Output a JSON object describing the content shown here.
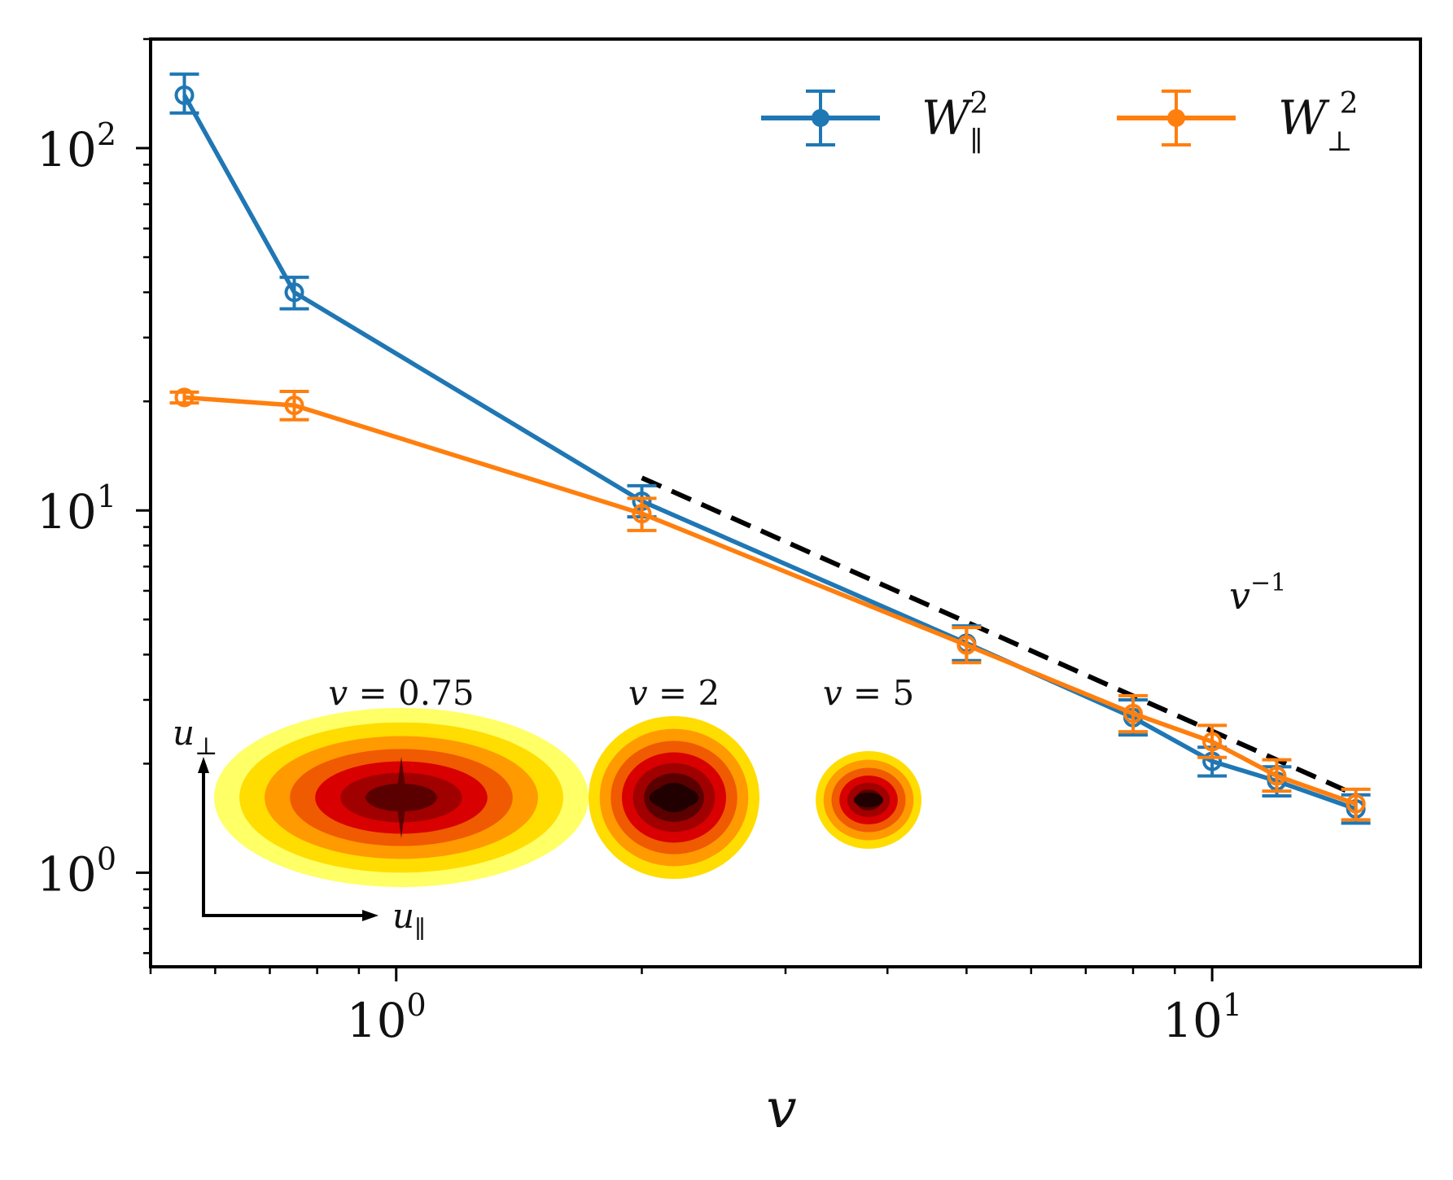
{
  "chart_data": {
    "type": "line",
    "xscale": "log",
    "yscale": "log",
    "xlim": [
      0.5,
      18
    ],
    "ylim": [
      0.55,
      200
    ],
    "xlabel": "v",
    "ylabel": "",
    "title": "",
    "x_ticks": [
      {
        "value": 1,
        "base": "10",
        "exp": "0"
      },
      {
        "value": 10,
        "base": "10",
        "exp": "1"
      }
    ],
    "y_ticks": [
      {
        "value": 1,
        "base": "10",
        "exp": "0"
      },
      {
        "value": 10,
        "base": "10",
        "exp": "1"
      },
      {
        "value": 100,
        "base": "10",
        "exp": "2"
      }
    ],
    "legend": {
      "position": "top-right"
    },
    "series": [
      {
        "name": "W∥²",
        "name_base": "W",
        "name_sub": "∥",
        "name_sup": "2",
        "color": "#1f77b4",
        "points": [
          {
            "x": 0.55,
            "y": 140,
            "err_low": 125,
            "err_high": 160
          },
          {
            "x": 0.75,
            "y": 40,
            "err_low": 36,
            "err_high": 44
          },
          {
            "x": 2,
            "y": 10.6,
            "err_low": 9.6,
            "err_high": 11.7
          },
          {
            "x": 5,
            "y": 4.3,
            "err_low": 3.85,
            "err_high": 4.8
          },
          {
            "x": 8,
            "y": 2.68,
            "err_low": 2.4,
            "err_high": 3.0
          },
          {
            "x": 10,
            "y": 2.03,
            "err_low": 1.85,
            "err_high": 2.22
          },
          {
            "x": 12,
            "y": 1.79,
            "err_low": 1.63,
            "err_high": 1.96
          },
          {
            "x": 15,
            "y": 1.5,
            "err_low": 1.37,
            "err_high": 1.64
          }
        ]
      },
      {
        "name": "W⊥²",
        "name_base": "W",
        "name_sub": "⊥",
        "name_sup": "2",
        "color": "#ff7f0e",
        "points": [
          {
            "x": 0.55,
            "y": 20.5,
            "err_low": 19.8,
            "err_high": 21.2
          },
          {
            "x": 0.75,
            "y": 19.5,
            "err_low": 17.8,
            "err_high": 21.3
          },
          {
            "x": 2,
            "y": 9.8,
            "err_low": 8.8,
            "err_high": 10.8
          },
          {
            "x": 5,
            "y": 4.25,
            "err_low": 3.8,
            "err_high": 4.75
          },
          {
            "x": 8,
            "y": 2.75,
            "err_low": 2.45,
            "err_high": 3.08
          },
          {
            "x": 10,
            "y": 2.3,
            "err_low": 2.08,
            "err_high": 2.55
          },
          {
            "x": 12,
            "y": 1.85,
            "err_low": 1.68,
            "err_high": 2.05
          },
          {
            "x": 15,
            "y": 1.55,
            "err_low": 1.4,
            "err_high": 1.7
          }
        ]
      }
    ],
    "reference_line": {
      "points": [
        {
          "x": 2,
          "y": 12.3
        },
        {
          "x": 15,
          "y": 1.64
        }
      ],
      "style": "dashed",
      "color": "#000000",
      "label_base": "v",
      "label_sup": "−1"
    },
    "insets": {
      "axis_x_label_base": "u",
      "axis_x_label_sub": "∥",
      "axis_y_label_base": "u",
      "axis_y_label_sub": "⊥",
      "panels": [
        {
          "label": "v = 0.75",
          "label_base": "v",
          "label_value": " = 0.75"
        },
        {
          "label": "v = 2",
          "label_base": "v",
          "label_value": " = 2"
        },
        {
          "label": "v = 5",
          "label_base": "v",
          "label_value": " = 5"
        }
      ],
      "colors": [
        "#ffff66",
        "#ffdd00",
        "#ff9a00",
        "#f05a00",
        "#d80000",
        "#a00000",
        "#5a0000",
        "#200000"
      ]
    }
  }
}
